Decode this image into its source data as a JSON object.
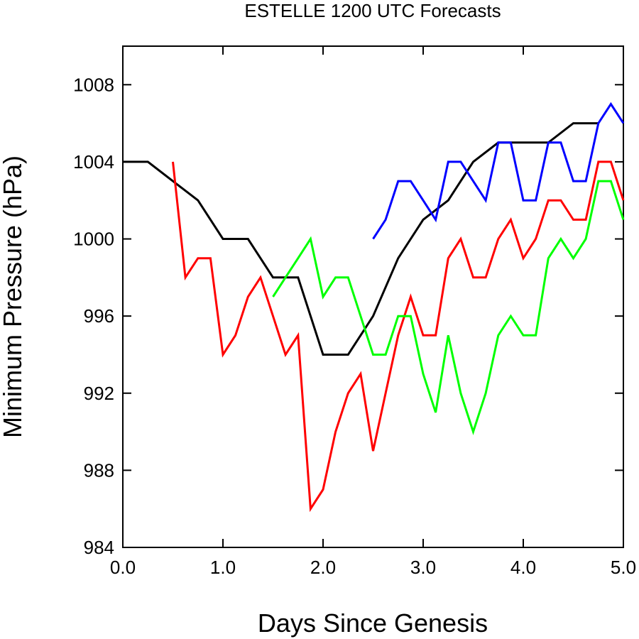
{
  "chart_data": {
    "type": "line",
    "title": "ESTELLE 1200 UTC Forecasts",
    "xlabel": "Days Since Genesis",
    "ylabel": "Minimum Pressure (hPa)",
    "xlim": [
      0,
      5
    ],
    "ylim": [
      984,
      1010
    ],
    "x_ticks": [
      0,
      1,
      2,
      3,
      4,
      5
    ],
    "x_tick_labels": [
      "0.0",
      "1.0",
      "2.0",
      "3.0",
      "4.0",
      "5.0"
    ],
    "y_ticks": [
      984,
      988,
      992,
      996,
      1000,
      1004,
      1008
    ],
    "y_tick_labels": [
      "984",
      "988",
      "992",
      "996",
      "1000",
      "1004",
      "1008"
    ],
    "grid": false,
    "legend": "none",
    "series": [
      {
        "color": "#000000",
        "x": [
          0,
          0.25,
          0.5,
          0.75,
          1.0,
          1.25,
          1.5,
          1.75,
          2.0,
          2.25,
          2.5,
          2.75,
          3.0,
          3.25,
          3.5,
          3.75,
          4.0,
          4.25,
          4.5,
          4.75
        ],
        "values": [
          1004,
          1004,
          1003,
          1002,
          1000,
          1000,
          998,
          998,
          994,
          994,
          996,
          999,
          1001,
          1002,
          1004,
          1005,
          1005,
          1005,
          1006,
          1006
        ]
      },
      {
        "color": "#ff0000",
        "x": [
          0.5,
          0.625,
          0.75,
          0.875,
          1.0,
          1.125,
          1.25,
          1.375,
          1.5,
          1.625,
          1.75,
          1.875,
          2.0,
          2.125,
          2.25,
          2.375,
          2.5,
          2.625,
          2.75,
          2.875,
          3.0,
          3.125,
          3.25,
          3.375,
          3.5,
          3.625,
          3.75,
          3.875,
          4.0,
          4.125,
          4.25,
          4.375,
          4.5,
          4.625,
          4.75,
          4.875,
          5.0
        ],
        "values": [
          1004,
          998,
          999,
          999,
          994,
          995,
          997,
          998,
          996,
          994,
          995,
          986,
          987,
          990,
          992,
          993,
          989,
          992,
          995,
          997,
          995,
          995,
          999,
          1000,
          998,
          998,
          1000,
          1001,
          999,
          1000,
          1002,
          1002,
          1001,
          1001,
          1004,
          1004,
          1002
        ]
      },
      {
        "color": "#00ff00",
        "x": [
          1.5,
          1.625,
          1.75,
          1.875,
          2.0,
          2.125,
          2.25,
          2.375,
          2.5,
          2.625,
          2.75,
          2.875,
          3.0,
          3.125,
          3.25,
          3.375,
          3.5,
          3.625,
          3.75,
          3.875,
          4.0,
          4.125,
          4.25,
          4.375,
          4.5,
          4.625,
          4.75,
          4.875,
          5.0
        ],
        "values": [
          997,
          998,
          999,
          1000,
          997,
          998,
          998,
          996,
          994,
          994,
          996,
          996,
          993,
          991,
          995,
          992,
          990,
          992,
          995,
          996,
          995,
          995,
          999,
          1000,
          999,
          1000,
          1003,
          1003,
          1001
        ]
      },
      {
        "color": "#0000ff",
        "x": [
          2.5,
          2.625,
          2.75,
          2.875,
          3.0,
          3.125,
          3.25,
          3.375,
          3.5,
          3.625,
          3.75,
          3.875,
          4.0,
          4.125,
          4.25,
          4.375,
          4.5,
          4.625,
          4.75,
          4.875,
          5.0
        ],
        "values": [
          1000,
          1001,
          1003,
          1003,
          1002,
          1001,
          1004,
          1004,
          1003,
          1002,
          1005,
          1005,
          1002,
          1002,
          1005,
          1005,
          1003,
          1003,
          1006,
          1007,
          1006
        ]
      }
    ]
  }
}
